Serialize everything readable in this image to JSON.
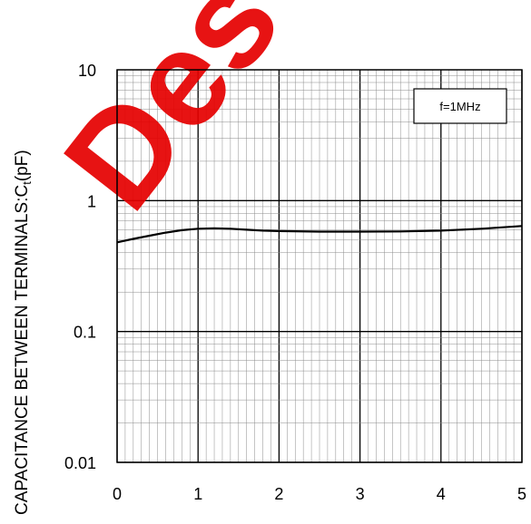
{
  "chart_data": {
    "type": "line",
    "title": "",
    "xlabel": "",
    "ylabel": "CAPACITANCE BETWEEN TERMINALS:C",
    "ylabel_subscript": "t",
    "ylabel_unit": "(pF)",
    "x_scale": "linear",
    "y_scale": "log",
    "xlim": [
      0,
      5
    ],
    "ylim": [
      0.01,
      10
    ],
    "x_ticks": [
      0,
      1,
      2,
      3,
      4,
      5
    ],
    "x_tick_labels": [
      "0",
      "1",
      "2",
      "3",
      "4",
      "5"
    ],
    "y_ticks": [
      0.01,
      0.1,
      1,
      10
    ],
    "y_tick_labels": [
      "0.01",
      "0.1",
      "1",
      "10"
    ],
    "grid": true,
    "annotation": "f=1MHz",
    "watermark": "Des",
    "colors": {
      "line": "#000000",
      "watermark": "#e60000"
    },
    "series": [
      {
        "x": [
          0,
          0.2,
          0.4,
          0.6,
          0.8,
          1.0,
          1.2,
          1.4,
          1.6,
          1.8,
          2.0,
          2.5,
          3.0,
          3.5,
          4.0,
          4.5,
          5.0
        ],
        "y": [
          0.48,
          0.51,
          0.54,
          0.57,
          0.595,
          0.61,
          0.615,
          0.61,
          0.6,
          0.59,
          0.585,
          0.58,
          0.58,
          0.582,
          0.59,
          0.61,
          0.64
        ]
      }
    ]
  }
}
